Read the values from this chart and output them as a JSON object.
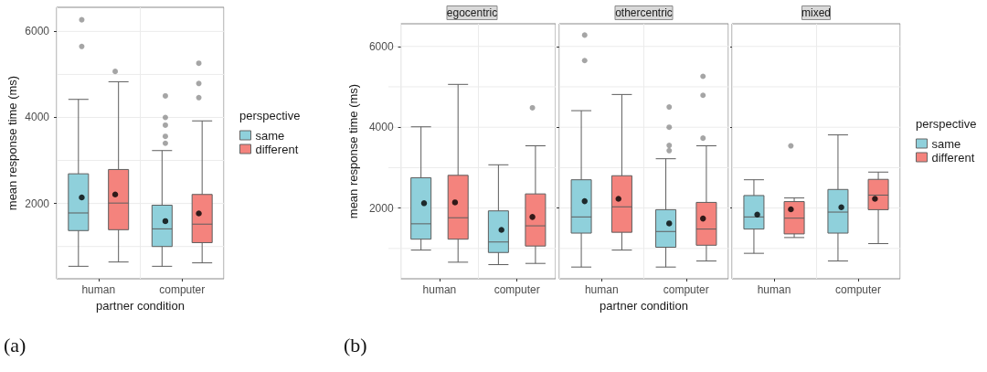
{
  "chart_data": [
    {
      "type": "box",
      "ylabel": "mean response time (ms)",
      "xlabel": "partner condition",
      "categories": [
        "human",
        "computer"
      ],
      "ylim": [
        250,
        6560
      ],
      "yticks": [
        {
          "value": 1000,
          "label": null
        },
        2000,
        {
          "value": 3000,
          "label": null
        },
        4000,
        {
          "value": 5000,
          "label": null
        },
        6000
      ],
      "grid": true,
      "legend": "right",
      "legend_title": "perspective",
      "annotations": [
        "(a)"
      ],
      "series": [
        {
          "name": "same",
          "color": "#8fd0db",
          "boxes": [
            {
              "low": 540,
              "q1": 1370,
              "median": 1780,
              "q3": 2690,
              "high": 4420,
              "mean": 2140,
              "outliers": [
                5650,
                6270
              ]
            },
            {
              "low": 540,
              "q1": 1000,
              "median": 1410,
              "q3": 1960,
              "high": 3230,
              "mean": 1590,
              "outliers": [
                3400,
                3560,
                3820,
                4000,
                4500
              ]
            }
          ]
        },
        {
          "name": "different",
          "color": "#f4837d",
          "boxes": [
            {
              "low": 640,
              "q1": 1390,
              "median": 2010,
              "q3": 2790,
              "high": 4830,
              "mean": 2210,
              "outliers": [
                5070
              ]
            },
            {
              "low": 620,
              "q1": 1090,
              "median": 1520,
              "q3": 2210,
              "high": 3920,
              "mean": 1770,
              "outliers": [
                4460,
                4790,
                5260
              ]
            }
          ]
        }
      ]
    },
    {
      "type": "box",
      "title": "egocentric",
      "ylabel": "mean response time (ms)",
      "categories": [
        "human",
        "computer"
      ],
      "ylim": [
        250,
        6560
      ],
      "yticks": [
        {
          "value": 1000,
          "label": null
        },
        2000,
        {
          "value": 3000,
          "label": null
        },
        4000,
        {
          "value": 5000,
          "label": null
        },
        6000
      ],
      "grid": true,
      "annotations": [
        "(b)"
      ],
      "series": [
        {
          "color": "#8fd0db",
          "boxes": [
            {
              "low": 960,
              "q1": 1230,
              "median": 1610,
              "q3": 2750,
              "high": 4010,
              "mean": 2120
            },
            {
              "low": 600,
              "q1": 900,
              "median": 1160,
              "q3": 1930,
              "high": 3070,
              "mean": 1460
            }
          ]
        },
        {
          "color": "#f4837d",
          "boxes": [
            {
              "low": 660,
              "q1": 1230,
              "median": 1760,
              "q3": 2810,
              "high": 5060,
              "mean": 2140
            },
            {
              "low": 630,
              "q1": 1060,
              "median": 1560,
              "q3": 2350,
              "high": 3540,
              "mean": 1780,
              "outliers": [
                4480
              ]
            }
          ]
        }
      ]
    },
    {
      "type": "box",
      "title": "othercentric",
      "xlabel": "partner condition",
      "categories": [
        "human",
        "computer"
      ],
      "ylim": [
        250,
        6560
      ],
      "yticks": [
        {
          "value": 1000,
          "label": null
        },
        2000,
        {
          "value": 3000,
          "label": null
        },
        4000,
        {
          "value": 5000,
          "label": null
        },
        6000
      ],
      "grid": true,
      "tick_labels": "x",
      "series": [
        {
          "color": "#8fd0db",
          "boxes": [
            {
              "low": 540,
              "q1": 1380,
              "median": 1780,
              "q3": 2700,
              "high": 4410,
              "mean": 2170,
              "outliers": [
                5650,
                6280
              ]
            },
            {
              "low": 540,
              "q1": 1030,
              "median": 1420,
              "q3": 1960,
              "high": 3220,
              "mean": 1620,
              "outliers": [
                3420,
                3550,
                4000,
                4500
              ]
            }
          ]
        },
        {
          "color": "#f4837d",
          "boxes": [
            {
              "low": 960,
              "q1": 1400,
              "median": 2030,
              "q3": 2800,
              "high": 4810,
              "mean": 2230
            },
            {
              "low": 690,
              "q1": 1080,
              "median": 1480,
              "q3": 2140,
              "high": 3540,
              "mean": 1740,
              "outliers": [
                3730,
                4790,
                5260
              ]
            }
          ]
        }
      ]
    },
    {
      "type": "box",
      "title": "mixed",
      "categories": [
        "human",
        "computer"
      ],
      "ylim": [
        250,
        6560
      ],
      "yticks": [
        {
          "value": 1000,
          "label": null
        },
        2000,
        {
          "value": 3000,
          "label": null
        },
        4000,
        {
          "value": 5000,
          "label": null
        },
        6000
      ],
      "grid": true,
      "tick_labels": "x",
      "legend": "right",
      "legend_title": "perspective",
      "series": [
        {
          "name": "same",
          "color": "#8fd0db",
          "boxes": [
            {
              "low": 880,
              "q1": 1480,
              "median": 1780,
              "q3": 2310,
              "high": 2700,
              "mean": 1840
            },
            {
              "low": 690,
              "q1": 1380,
              "median": 1900,
              "q3": 2460,
              "high": 3810,
              "mean": 2020
            }
          ]
        },
        {
          "name": "different",
          "color": "#f4837d",
          "boxes": [
            {
              "low": 1270,
              "q1": 1360,
              "median": 1750,
              "q3": 2160,
              "high": 2250,
              "mean": 1970,
              "outliers": [
                3540
              ]
            },
            {
              "low": 1120,
              "q1": 1960,
              "median": 2320,
              "q3": 2710,
              "high": 2890,
              "mean": 2230
            }
          ]
        }
      ]
    }
  ]
}
